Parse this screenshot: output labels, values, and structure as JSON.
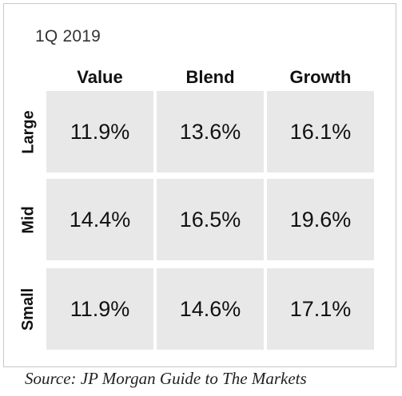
{
  "chart_data": {
    "type": "table",
    "title": "1Q 2019",
    "columns": [
      "Value",
      "Blend",
      "Growth"
    ],
    "rows": [
      {
        "label": "Large",
        "values": [
          "11.9%",
          "13.6%",
          "16.1%"
        ]
      },
      {
        "label": "Mid",
        "values": [
          "14.4%",
          "16.5%",
          "19.6%"
        ]
      },
      {
        "label": "Small",
        "values": [
          "11.9%",
          "14.6%",
          "17.1%"
        ]
      }
    ],
    "source": "Source: JP Morgan Guide to The Markets"
  }
}
